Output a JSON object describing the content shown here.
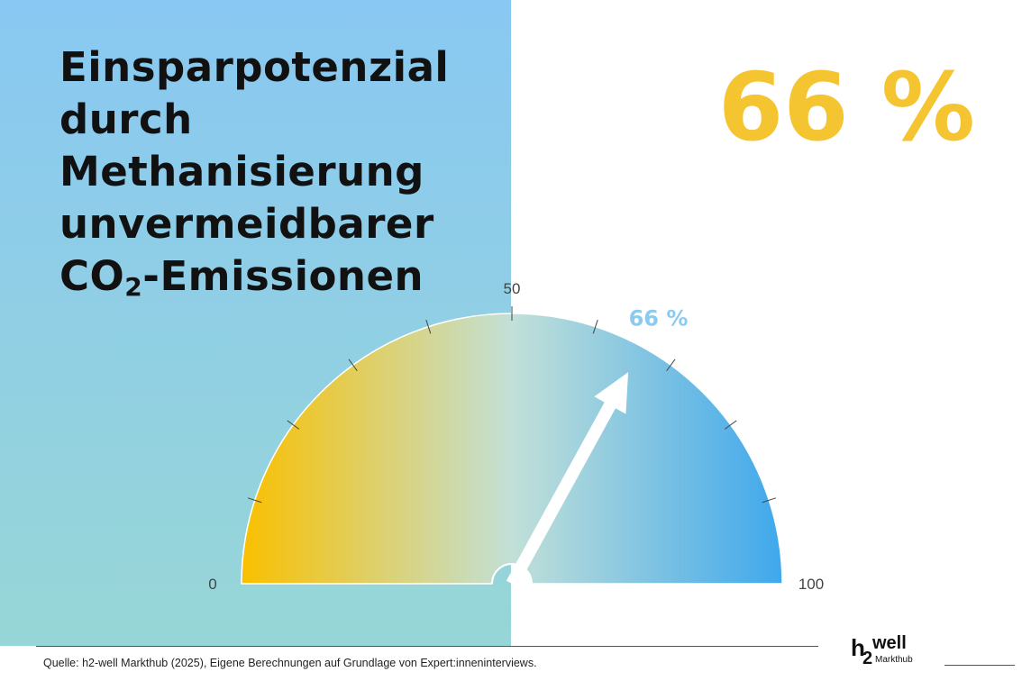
{
  "title_parts": [
    "Einsparpotenzial",
    "durch",
    "Methanisierung",
    "unvermeidbarer",
    "CO",
    "2",
    "-Emissionen"
  ],
  "big_value": "66 %",
  "source": "Quelle: h2-well Markthub (2025), Eigene Berechnungen auf Grundlage von Expert:inneninterviews.",
  "logo": {
    "h": "h",
    "two": "2",
    "well": "well",
    "sub": "Markthub"
  },
  "colors": {
    "low": "#f9c000",
    "mid": "#c2e0d8",
    "high": "#3fa8ec",
    "value": "#8ccbef",
    "accent": "#f5c531"
  },
  "chart_data": {
    "type": "gauge",
    "value": 66,
    "value_label": "66 %",
    "range": [
      0,
      100
    ],
    "tick_step": 10,
    "tick_labels": [
      {
        "value": 0,
        "label": "0"
      },
      {
        "value": 50,
        "label": "50"
      },
      {
        "value": 100,
        "label": "100"
      }
    ]
  }
}
